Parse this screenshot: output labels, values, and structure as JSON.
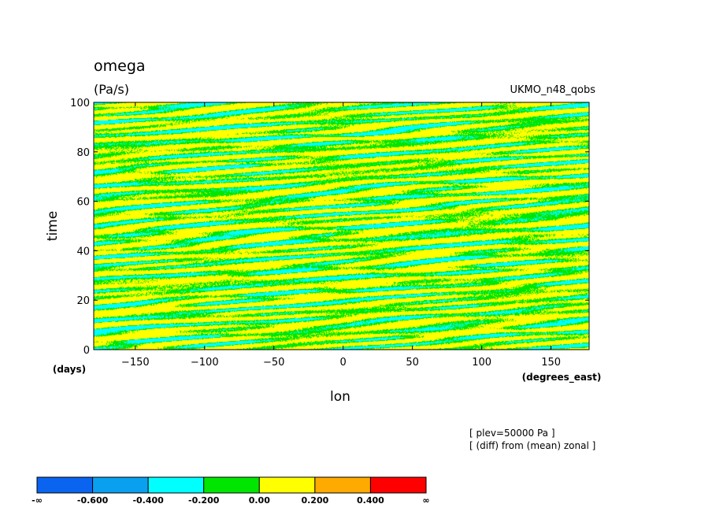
{
  "header": {
    "var_name": "omega",
    "units": "(Pa/s)",
    "model": "UKMO_n48_qobs"
  },
  "notes": [
    "[ plev=50000 Pa ]",
    "[ (diff) from (mean) zonal ]"
  ],
  "colorbar": {
    "colors": [
      "#0a64f0",
      "#0aa0f0",
      "#00ffff",
      "#00e600",
      "#ffff00",
      "#ffaa00",
      "#ff0000"
    ],
    "labels": [
      "-∞",
      "-0.600",
      "-0.400",
      "-0.200",
      "0.00",
      "0.200",
      "0.400",
      "∞"
    ]
  },
  "chart_data": {
    "type": "heatmap",
    "title": "omega",
    "units": "(Pa/s)",
    "xlabel": "lon",
    "xunits": "(degrees_east)",
    "ylabel": "time",
    "yunits": "(days)",
    "xlim": [
      -180,
      177.5
    ],
    "ylim": [
      0,
      100
    ],
    "xticks": [
      -150,
      -100,
      -50,
      0,
      50,
      100,
      150
    ],
    "xtick_labels": [
      "−150",
      "−100",
      "−50",
      "0",
      "50",
      "100",
      "150"
    ],
    "yticks": [
      0,
      20,
      40,
      60,
      80,
      100
    ],
    "ytick_labels": [
      "0",
      "20",
      "40",
      "60",
      "80",
      "100"
    ],
    "levels": [
      -0.6,
      -0.4,
      -0.2,
      0.0,
      0.2,
      0.4
    ],
    "dominant_ranges": [
      "0.00 to 0.200",
      "-0.200 to 0.00"
    ],
    "occasional_range": "-0.400 to -0.200"
  }
}
